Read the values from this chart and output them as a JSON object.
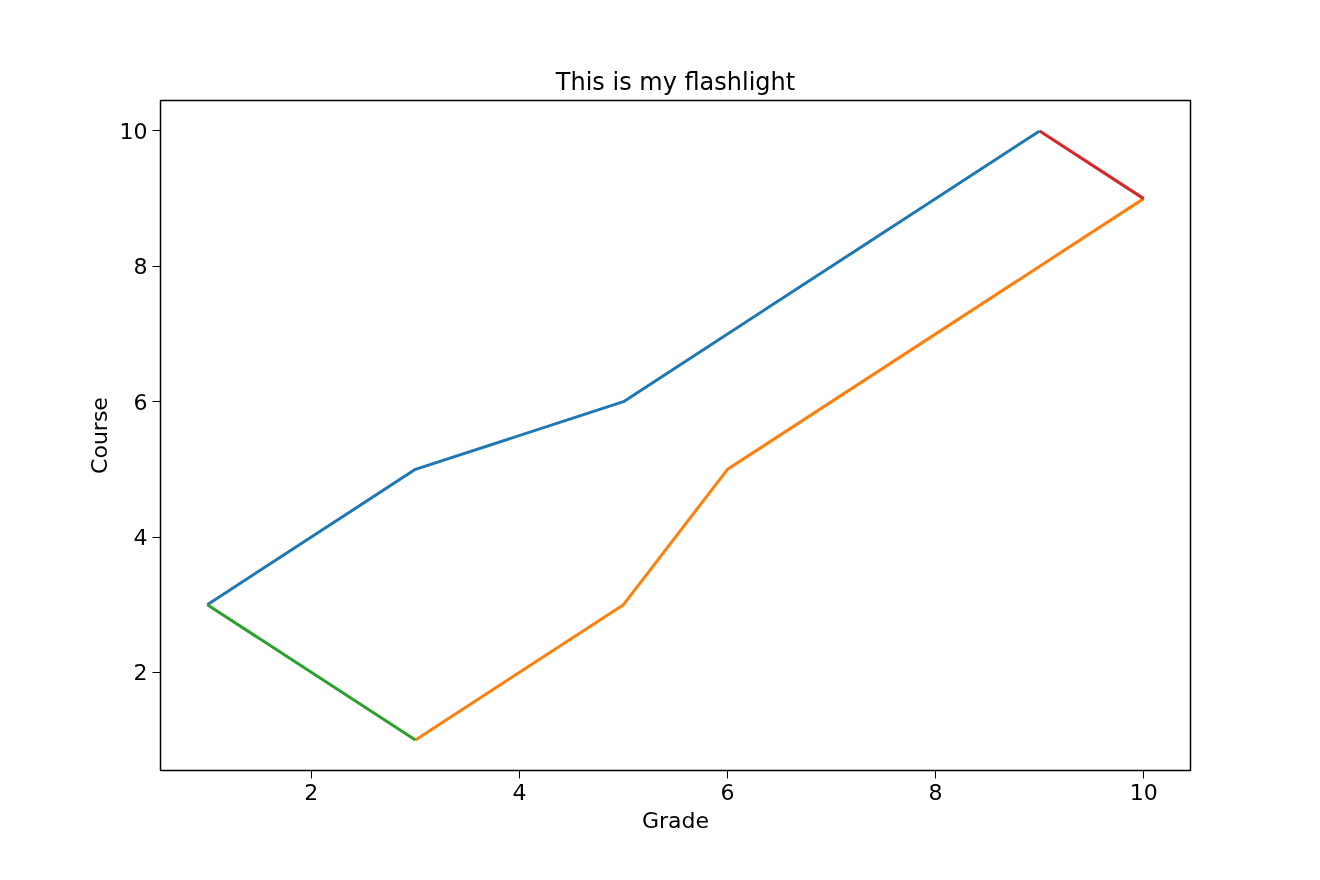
{
  "chart_data": {
    "type": "line",
    "title": "This is my flashlight",
    "xlabel": "Grade",
    "ylabel": "Course",
    "series": [
      {
        "color": "#1f77b4",
        "x": [
          1,
          3,
          5,
          9
        ],
        "values": [
          3,
          5,
          6,
          10
        ]
      },
      {
        "color": "#ff7f0e",
        "x": [
          3,
          5,
          6,
          10
        ],
        "values": [
          1,
          3,
          5,
          9
        ]
      },
      {
        "color": "#2ca02c",
        "x": [
          1,
          3
        ],
        "values": [
          3,
          1
        ]
      },
      {
        "color": "#d62728",
        "x": [
          9,
          10
        ],
        "values": [
          10,
          9
        ]
      }
    ],
    "xlim": [
      0.55,
      10.45
    ],
    "ylim": [
      0.55,
      10.45
    ],
    "xticks": [
      2,
      4,
      6,
      8,
      10
    ],
    "yticks": [
      2,
      4,
      6,
      8,
      10
    ],
    "marker": "none",
    "line_style": "solid"
  }
}
